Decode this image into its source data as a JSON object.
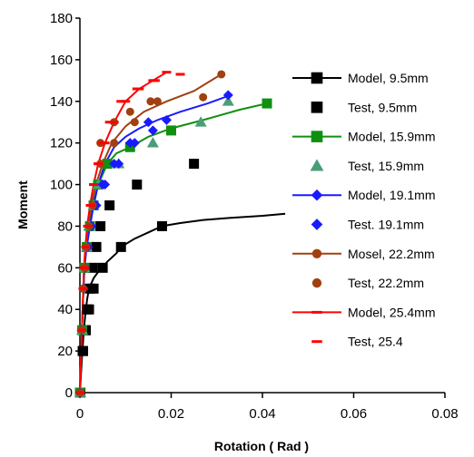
{
  "chart_data": {
    "type": "scatter",
    "xlabel": "Rotation ( Rad )",
    "ylabel": "Moment",
    "xlim": [
      0,
      0.08
    ],
    "ylim": [
      0,
      180
    ],
    "x_ticks": [
      0,
      0.02,
      0.04,
      0.06,
      0.08
    ],
    "x_tick_labels": [
      "0",
      "0.02",
      "0.04",
      "0.06",
      "0.08"
    ],
    "y_ticks": [
      0,
      20,
      40,
      60,
      80,
      100,
      120,
      140,
      160,
      180
    ],
    "y_tick_labels": [
      "0",
      "20",
      "40",
      "60",
      "80",
      "100",
      "120",
      "140",
      "160",
      "180"
    ],
    "grid": false,
    "legend_position": "right",
    "series": [
      {
        "name": "Model, 9.5mm",
        "kind": "model",
        "color": "#000000",
        "marker": "square",
        "line_x": [
          0,
          0.0004,
          0.0008,
          0.0012,
          0.0016,
          0.002,
          0.003,
          0.004,
          0.005,
          0.006,
          0.008,
          0.009,
          0.012,
          0.015,
          0.018,
          0.022,
          0.027,
          0.033,
          0.04,
          0.045
        ],
        "line_y": [
          0,
          15,
          28,
          38,
          45,
          50,
          55,
          58,
          60,
          63,
          67,
          70,
          74,
          77,
          80,
          81.5,
          83,
          84,
          85,
          86
        ],
        "marker_x": [
          0.0001,
          0.0007,
          0.0013,
          0.002,
          0.003,
          0.005,
          0.009,
          0.018
        ],
        "marker_y": [
          0,
          20,
          30,
          40,
          50,
          60,
          70,
          80
        ]
      },
      {
        "name": "Test, 9.5mm",
        "kind": "test",
        "color": "#000000",
        "marker": "square",
        "marker_x": [
          0.0001,
          0.0006,
          0.0011,
          0.0016,
          0.0022,
          0.0028,
          0.0036,
          0.0045,
          0.0065,
          0.0125,
          0.025
        ],
        "marker_y": [
          0,
          20,
          30,
          40,
          50,
          60,
          70,
          80,
          90,
          100,
          110
        ]
      },
      {
        "name": "Model, 15.9mm",
        "kind": "model",
        "color": "#109010",
        "marker": "square",
        "line_x": [
          0,
          0.0003,
          0.0006,
          0.001,
          0.0014,
          0.002,
          0.0028,
          0.004,
          0.006,
          0.008,
          0.011,
          0.015,
          0.02,
          0.027,
          0.035,
          0.041
        ],
        "line_y": [
          0,
          20,
          40,
          60,
          70,
          80,
          90,
          100,
          110,
          115,
          118,
          123,
          127,
          131,
          136,
          139
        ],
        "marker_x": [
          0,
          0.0005,
          0.001,
          0.0015,
          0.0022,
          0.003,
          0.004,
          0.006,
          0.011,
          0.02,
          0.041
        ],
        "marker_y": [
          0,
          30,
          60,
          70,
          80,
          90,
          100,
          110,
          118,
          126,
          139
        ]
      },
      {
        "name": "Test, 15.9mm",
        "kind": "test",
        "color": "#4a9e77",
        "marker": "triangle",
        "marker_x": [
          0.0001,
          0.0005,
          0.001,
          0.0015,
          0.002,
          0.003,
          0.004,
          0.0085,
          0.016,
          0.0265,
          0.0325
        ],
        "marker_y": [
          0,
          30,
          60,
          70,
          80,
          90,
          100,
          110,
          120,
          130,
          140
        ]
      },
      {
        "name": "Model, 19.1mm",
        "kind": "model",
        "color": "#1a1aff",
        "marker": "diamond",
        "line_x": [
          0,
          0.0003,
          0.0006,
          0.001,
          0.0015,
          0.0022,
          0.003,
          0.004,
          0.0055,
          0.0075,
          0.01,
          0.013,
          0.017,
          0.022,
          0.028,
          0.033
        ],
        "line_y": [
          0,
          20,
          40,
          60,
          70,
          80,
          90,
          100,
          110,
          118,
          123,
          127,
          131,
          135,
          139,
          143
        ],
        "marker_x": [
          0,
          0.0004,
          0.0008,
          0.0012,
          0.0018,
          0.0026,
          0.0036,
          0.0055,
          0.0085,
          0.012,
          0.016,
          0.0325
        ],
        "marker_y": [
          0,
          30,
          50,
          60,
          70,
          80,
          90,
          100,
          110,
          120,
          126,
          143
        ]
      },
      {
        "name": "Test. 19.1mm",
        "kind": "test",
        "color": "#1a1aff",
        "marker": "diamond",
        "marker_x": [
          0.0001,
          0.0004,
          0.0008,
          0.0012,
          0.0017,
          0.0025,
          0.0035,
          0.005,
          0.0075,
          0.011,
          0.015,
          0.019
        ],
        "marker_y": [
          0,
          30,
          50,
          60,
          70,
          80,
          90,
          100,
          110,
          120,
          130,
          131
        ]
      },
      {
        "name": "Mosel, 22.2mm",
        "kind": "model",
        "color": "#a04010",
        "marker": "circle",
        "line_x": [
          0,
          0.0003,
          0.0006,
          0.0009,
          0.0013,
          0.0018,
          0.0025,
          0.0035,
          0.005,
          0.007,
          0.01,
          0.014,
          0.019,
          0.025,
          0.031
        ],
        "line_y": [
          0,
          20,
          40,
          60,
          70,
          80,
          90,
          100,
          110,
          120,
          128,
          135,
          140,
          145,
          153
        ],
        "marker_x": [
          0,
          0.0004,
          0.0007,
          0.001,
          0.0014,
          0.002,
          0.0028,
          0.0045,
          0.0075,
          0.012,
          0.017,
          0.031
        ],
        "marker_y": [
          0,
          30,
          50,
          60,
          70,
          80,
          90,
          110,
          120,
          130,
          140,
          153
        ]
      },
      {
        "name": "Test, 22.2mm",
        "kind": "test",
        "color": "#a04010",
        "marker": "circle",
        "marker_x": [
          0.0001,
          0.0004,
          0.0007,
          0.001,
          0.0014,
          0.002,
          0.0028,
          0.0045,
          0.0075,
          0.011,
          0.0155,
          0.027
        ],
        "marker_y": [
          0,
          30,
          50,
          60,
          70,
          80,
          90,
          120,
          130,
          135,
          140,
          142
        ]
      },
      {
        "name": "Model, 25.4mm",
        "kind": "model",
        "color": "#ff0000",
        "marker": "dash",
        "line_x": [
          0,
          0.0003,
          0.0006,
          0.0009,
          0.0012,
          0.0016,
          0.0022,
          0.003,
          0.004,
          0.0055,
          0.0075,
          0.01,
          0.013,
          0.016,
          0.019
        ],
        "line_y": [
          0,
          20,
          40,
          60,
          70,
          80,
          90,
          100,
          110,
          120,
          130,
          140,
          146,
          150,
          154
        ],
        "marker_x": [
          0.0001,
          0.0004,
          0.0007,
          0.001,
          0.0013,
          0.0017,
          0.0023,
          0.003,
          0.004,
          0.0055,
          0.0075,
          0.01,
          0.013,
          0.016,
          0.019
        ],
        "marker_y": [
          0,
          30,
          50,
          60,
          70,
          80,
          90,
          100,
          110,
          120,
          130,
          140,
          146,
          150,
          154
        ]
      },
      {
        "name": "Test, 25.4",
        "kind": "test",
        "color": "#ff0000",
        "marker": "dash",
        "marker_x": [
          0.0001,
          0.0004,
          0.0007,
          0.001,
          0.0013,
          0.0017,
          0.0023,
          0.003,
          0.004,
          0.005,
          0.0065,
          0.009,
          0.0125,
          0.0165,
          0.022
        ],
        "marker_y": [
          0,
          30,
          50,
          60,
          70,
          80,
          90,
          100,
          110,
          120,
          130,
          140,
          146,
          150,
          153
        ]
      }
    ]
  }
}
